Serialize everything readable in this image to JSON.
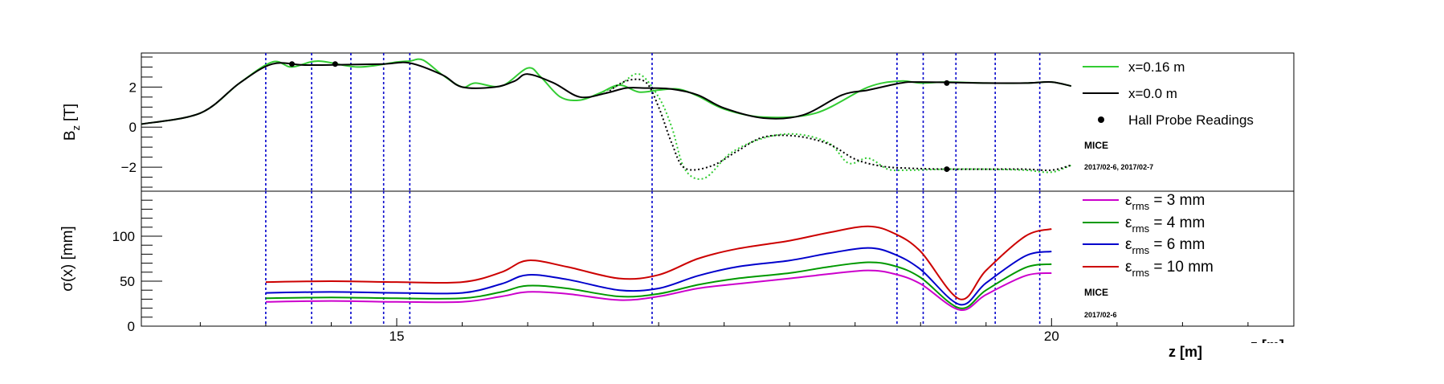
{
  "chart_data": [
    {
      "type": "line",
      "ylabel_main": "B",
      "ylabel_sub": "z",
      "ylabel_unit": "[T]",
      "xlim": [
        13.05,
        21.85
      ],
      "ylim": [
        -3.2,
        3.7
      ],
      "y_ticks": [
        -2,
        0,
        2
      ],
      "series": [
        {
          "name": "x=0.16 m",
          "color": "#33cc33",
          "style": "solid",
          "x": [
            13.05,
            13.5,
            13.8,
            14.05,
            14.2,
            14.4,
            14.7,
            15.0,
            15.1,
            15.2,
            15.35,
            15.5,
            15.6,
            15.8,
            16.0,
            16.1,
            16.25,
            16.4,
            16.55,
            16.7,
            16.85,
            17.0,
            17.15,
            17.3,
            17.5,
            17.8,
            18.2,
            18.6,
            18.85,
            19.0,
            19.2,
            19.5,
            19.8,
            20.0,
            20.15
          ],
          "y": [
            0.15,
            0.7,
            2.2,
            3.25,
            3.0,
            3.3,
            3.0,
            3.25,
            3.3,
            3.35,
            2.6,
            2.0,
            2.2,
            2.05,
            2.95,
            2.5,
            1.5,
            1.35,
            1.7,
            2.1,
            1.75,
            1.85,
            1.9,
            1.55,
            0.9,
            0.5,
            0.7,
            2.0,
            2.3,
            2.2,
            2.25,
            2.2,
            2.2,
            2.25,
            2.05
          ]
        },
        {
          "name": "x=0.16 m",
          "color": "#33cc33",
          "style": "dotted",
          "x": [
            16.55,
            16.7,
            16.85,
            17.0,
            17.1,
            17.2,
            17.35,
            17.55,
            17.8,
            18.05,
            18.3,
            18.45,
            18.6,
            18.75,
            18.9,
            19.2,
            19.5,
            19.8,
            20.0,
            20.15
          ],
          "y": [
            1.7,
            2.1,
            2.65,
            1.5,
            0.0,
            -2.1,
            -2.55,
            -1.3,
            -0.55,
            -0.35,
            -0.8,
            -1.8,
            -1.55,
            -2.1,
            -2.15,
            -2.1,
            -2.1,
            -2.15,
            -2.25,
            -1.9
          ]
        },
        {
          "name": "x=0.0 m",
          "color": "#000000",
          "style": "solid",
          "x": [
            13.05,
            13.5,
            13.8,
            14.05,
            14.3,
            14.6,
            14.9,
            15.1,
            15.35,
            15.5,
            15.75,
            15.9,
            16.0,
            16.2,
            16.4,
            16.6,
            16.75,
            16.9,
            17.1,
            17.3,
            17.5,
            17.8,
            18.1,
            18.4,
            18.6,
            18.85,
            19.0,
            19.5,
            19.8,
            20.0,
            20.15
          ],
          "y": [
            0.15,
            0.7,
            2.2,
            3.15,
            3.1,
            3.12,
            3.15,
            3.2,
            2.6,
            2.0,
            2.0,
            2.3,
            2.65,
            2.2,
            1.5,
            1.7,
            1.95,
            1.95,
            1.9,
            1.6,
            0.95,
            0.45,
            0.6,
            1.6,
            1.85,
            2.2,
            2.25,
            2.2,
            2.2,
            2.25,
            2.05
          ]
        },
        {
          "name": "x=0.0 m",
          "color": "#000000",
          "style": "dotted",
          "x": [
            16.6,
            16.75,
            16.9,
            17.0,
            17.1,
            17.2,
            17.4,
            17.6,
            17.8,
            18.05,
            18.3,
            18.5,
            18.7,
            18.9,
            19.2,
            19.5,
            19.8,
            20.0,
            20.15
          ],
          "y": [
            1.7,
            2.3,
            2.25,
            1.0,
            -0.8,
            -2.05,
            -1.95,
            -1.2,
            -0.5,
            -0.45,
            -0.85,
            -1.6,
            -1.95,
            -2.05,
            -2.1,
            -2.1,
            -2.1,
            -2.15,
            -1.9
          ]
        }
      ],
      "hall_probe_readings": {
        "name": "Hall Probe Readings",
        "x": [
          14.2,
          14.53,
          19.2,
          19.2
        ],
        "y": [
          3.15,
          3.15,
          2.2,
          -2.1
        ]
      },
      "legend": [
        "x=0.16 m",
        "x=0.0 m",
        "Hall Probe Readings"
      ],
      "annotation_title": "MICE",
      "annotation_subtitle": "2017/02-6, 2017/02-7"
    },
    {
      "type": "line",
      "ylabel": "σ(x) [mm]",
      "xlabel": "z [m]",
      "xlabel_clipped": "z [m]",
      "xlim": [
        13.05,
        21.85
      ],
      "ylim": [
        0,
        150
      ],
      "y_ticks": [
        0,
        50,
        100
      ],
      "x_ticks": [
        15,
        20
      ],
      "series": [
        {
          "name": "3 mm",
          "color": "#cc00cc",
          "x": [
            14.0,
            14.5,
            15.0,
            15.5,
            15.8,
            16.0,
            16.3,
            16.7,
            17.0,
            17.3,
            17.6,
            18.0,
            18.3,
            18.6,
            18.8,
            19.0,
            19.3,
            19.5,
            19.8,
            20.0
          ],
          "y": [
            27,
            28,
            27,
            27,
            33,
            38,
            36,
            29,
            33,
            42,
            47,
            53,
            58,
            62,
            58,
            47,
            18,
            35,
            56,
            59
          ]
        },
        {
          "name": "4 mm",
          "color": "#009900",
          "x": [
            14.0,
            14.5,
            15.0,
            15.5,
            15.8,
            16.0,
            16.3,
            16.7,
            17.0,
            17.3,
            17.6,
            18.0,
            18.3,
            18.6,
            18.8,
            19.0,
            19.3,
            19.5,
            19.8,
            20.0
          ],
          "y": [
            31,
            32,
            31,
            31,
            38,
            45,
            42,
            33,
            36,
            46,
            53,
            59,
            66,
            71,
            67,
            54,
            20,
            40,
            65,
            69
          ]
        },
        {
          "name": "6 mm",
          "color": "#0000cc",
          "x": [
            14.0,
            14.5,
            15.0,
            15.5,
            15.8,
            16.0,
            16.3,
            16.7,
            17.0,
            17.3,
            17.6,
            18.0,
            18.3,
            18.6,
            18.8,
            19.0,
            19.3,
            19.5,
            19.8,
            20.0
          ],
          "y": [
            37,
            38,
            37,
            37,
            47,
            57,
            52,
            40,
            42,
            56,
            66,
            73,
            81,
            87,
            80,
            63,
            24,
            48,
            78,
            83
          ]
        },
        {
          "name": "10 mm",
          "color": "#cc0000",
          "x": [
            14.0,
            14.5,
            15.0,
            15.5,
            15.8,
            16.0,
            16.3,
            16.7,
            17.0,
            17.3,
            17.6,
            18.0,
            18.3,
            18.6,
            18.8,
            19.0,
            19.3,
            19.5,
            19.8,
            20.0
          ],
          "y": [
            49,
            50,
            49,
            49,
            60,
            73,
            66,
            53,
            57,
            75,
            86,
            95,
            104,
            111,
            103,
            83,
            30,
            62,
            100,
            108
          ]
        }
      ],
      "legend": [
        {
          "prefix": "ε",
          "sub": "rms",
          "value": " = 3 mm",
          "color": "#cc00cc"
        },
        {
          "prefix": "ε",
          "sub": "rms",
          "value": " = 4 mm",
          "color": "#009900"
        },
        {
          "prefix": "ε",
          "sub": "rms",
          "value": " = 6 mm",
          "color": "#0000cc"
        },
        {
          "prefix": "ε",
          "sub": "rms",
          "value": " = 10 mm",
          "color": "#cc0000"
        }
      ],
      "annotation_title": "MICE",
      "annotation_subtitle": "2017/02-6"
    }
  ],
  "vertical_markers": {
    "color": "#0000cc",
    "x": [
      14.0,
      14.35,
      14.65,
      14.9,
      15.1,
      16.95,
      18.82,
      19.02,
      19.27,
      19.57,
      19.91
    ]
  }
}
